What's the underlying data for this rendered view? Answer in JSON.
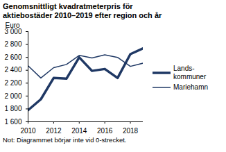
{
  "chart_data": {
    "type": "line",
    "title": "Genomsnittligt kvadratmeterpris för aktiebostäder 2010–2019 efter region och år",
    "y_label": "Euro",
    "note": "Not: Diagrammet börjar inte vid 0-strecket.",
    "x": [
      2010,
      2011,
      2012,
      2013,
      2014,
      2015,
      2016,
      2017,
      2018,
      2019
    ],
    "series": [
      {
        "name": "Lands-kommuner",
        "color": "#1f3864",
        "line_style": "thick",
        "values": [
          1780,
          1950,
          2280,
          2270,
          2600,
          2390,
          2420,
          2280,
          2650,
          2740
        ]
      },
      {
        "name": "Mariehamn",
        "color": "#1f3864",
        "line_style": "thin",
        "values": [
          2470,
          2280,
          2440,
          2490,
          2630,
          2590,
          2640,
          2600,
          2460,
          2510
        ]
      }
    ],
    "xlim": [
      2010,
      2019
    ],
    "xticks": [
      2010,
      2012,
      2014,
      2016,
      2018
    ],
    "ylim": [
      1600,
      3000
    ],
    "yticks": [
      {
        "value": 1600,
        "label": "1 600"
      },
      {
        "value": 1800,
        "label": "1 800"
      },
      {
        "value": 2000,
        "label": "2 000"
      },
      {
        "value": 2200,
        "label": "2 200"
      },
      {
        "value": 2400,
        "label": "2 400"
      },
      {
        "value": 2600,
        "label": "2 600"
      },
      {
        "value": 2800,
        "label": "2 800"
      },
      {
        "value": 3000,
        "label": "3 000"
      }
    ],
    "grid": false,
    "legend": "right"
  }
}
